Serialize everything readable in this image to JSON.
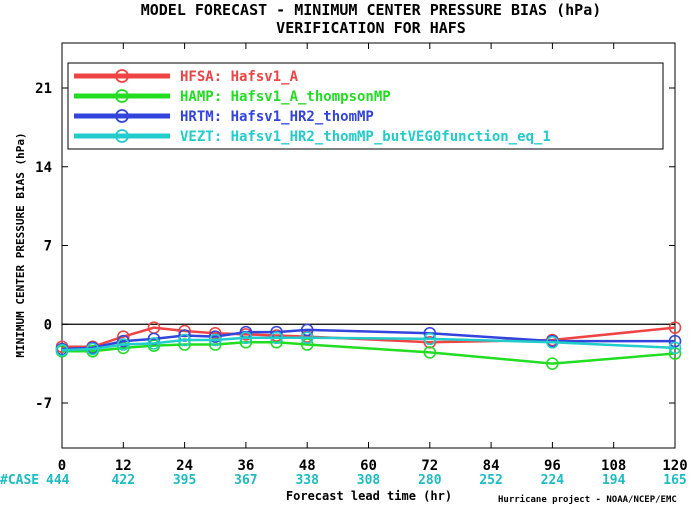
{
  "chart_data": {
    "type": "line",
    "title": "MODEL FORECAST - MINIMUM CENTER PRESSURE BIAS (hPa)",
    "subtitle": "VERIFICATION FOR HAFS",
    "xlabel": "Forecast lead time (hr)",
    "ylabel": "MINIMUM CENTER PRESSURE BIAS (hPa)",
    "xlim": [
      0,
      120
    ],
    "ylim": [
      -11,
      25
    ],
    "x_ticks": [
      "0",
      "12",
      "24",
      "36",
      "48",
      "60",
      "72",
      "84",
      "96",
      "108",
      "120"
    ],
    "y_ticks": [
      "21",
      "14",
      "7",
      "0",
      "-7"
    ],
    "grid": false,
    "zero_line": true,
    "legend_placement": "top-left",
    "case_label": "#CASE",
    "case_counts": [
      "444",
      "422",
      "395",
      "367",
      "338",
      "308",
      "280",
      "252",
      "224",
      "194",
      "165"
    ],
    "credit": "Hurricane project - NOAA/NCEP/EMC",
    "series": [
      {
        "name": "HFSA: Hafsv1_A",
        "color": "#ee4444",
        "x": [
          0,
          6,
          12,
          18,
          24,
          30,
          36,
          42,
          48,
          72,
          96,
          120
        ],
        "y": [
          -2.0,
          -2.0,
          -1.1,
          -0.3,
          -0.6,
          -0.8,
          -0.9,
          -1.0,
          -1.1,
          -1.6,
          -1.4,
          -0.3
        ]
      },
      {
        "name": "HAMP: Hafsv1_A_thompsonMP",
        "color": "#22dd22",
        "x": [
          0,
          6,
          12,
          18,
          24,
          30,
          36,
          42,
          48,
          72,
          96,
          120
        ],
        "y": [
          -2.4,
          -2.4,
          -2.1,
          -1.9,
          -1.8,
          -1.8,
          -1.6,
          -1.6,
          -1.8,
          -2.5,
          -3.5,
          -2.6
        ]
      },
      {
        "name": "HRTM: Hafsv1_HR2_thomMP",
        "color": "#3344dd",
        "x": [
          0,
          6,
          12,
          18,
          24,
          30,
          36,
          42,
          48,
          72,
          96,
          120
        ],
        "y": [
          -2.2,
          -2.1,
          -1.5,
          -1.3,
          -1.0,
          -1.1,
          -0.7,
          -0.7,
          -0.5,
          -0.8,
          -1.5,
          -1.5
        ]
      },
      {
        "name": "VEZT: Hafsv1_HR2_thomMP_butVEG0function_eq_1",
        "color": "#22cccc",
        "x": [
          0,
          6,
          12,
          18,
          24,
          30,
          36,
          42,
          48,
          72,
          96,
          120
        ],
        "y": [
          -2.3,
          -2.2,
          -1.8,
          -1.7,
          -1.4,
          -1.4,
          -1.2,
          -1.2,
          -1.2,
          -1.3,
          -1.6,
          -2.1
        ]
      }
    ]
  }
}
